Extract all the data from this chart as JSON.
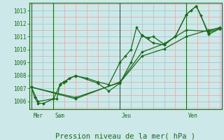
{
  "background_color": "#cde8e8",
  "grid_major_color": "#aacccc",
  "grid_minor_color": "#ddaaaa",
  "line_color": "#1a6b1a",
  "title": "Pression niveau de la mer( hPa )",
  "ylim": [
    1005.4,
    1013.6
  ],
  "yticks": [
    1006,
    1007,
    1008,
    1009,
    1010,
    1011,
    1012,
    1013
  ],
  "day_positions": [
    0.0,
    1.0,
    4.0,
    7.0
  ],
  "day_labels": [
    "Mer",
    "Sam",
    "Jeu",
    "Ven"
  ],
  "xlim": [
    -0.1,
    8.6
  ],
  "series": [
    [
      0.0,
      1007.1,
      0.15,
      1006.3,
      0.3,
      1005.85,
      0.55,
      1005.85,
      1.0,
      1006.2,
      1.15,
      1006.2,
      1.3,
      1007.35,
      1.45,
      1007.45,
      1.55,
      1007.55,
      1.7,
      1007.8,
      2.0,
      1007.95,
      2.5,
      1007.8,
      3.0,
      1007.5,
      3.5,
      1007.3,
      4.0,
      1009.0,
      4.25,
      1009.5,
      4.5,
      1010.0,
      4.75,
      1011.7,
      5.0,
      1011.05,
      5.3,
      1010.9,
      5.5,
      1011.0,
      6.0,
      1010.4,
      6.5,
      1011.0,
      7.0,
      1012.7,
      7.2,
      1013.0,
      7.45,
      1013.35,
      7.65,
      1012.65,
      8.0,
      1011.15,
      8.5,
      1011.6
    ],
    [
      0.0,
      1007.1,
      0.3,
      1006.0,
      1.0,
      1006.2,
      1.3,
      1007.3,
      1.45,
      1007.5,
      2.0,
      1008.0,
      3.0,
      1007.4,
      3.5,
      1006.8,
      4.0,
      1007.4,
      4.5,
      1009.0,
      5.0,
      1011.1,
      5.5,
      1010.5,
      6.0,
      1010.35,
      6.5,
      1011.0,
      7.0,
      1012.7,
      7.45,
      1013.35,
      8.0,
      1011.3,
      8.5,
      1011.6
    ],
    [
      0.0,
      1007.1,
      2.0,
      1006.3,
      4.0,
      1007.45,
      5.0,
      1009.5,
      6.0,
      1010.05,
      7.0,
      1011.0,
      8.0,
      1011.5,
      8.5,
      1011.65
    ],
    [
      0.0,
      1007.1,
      2.0,
      1006.2,
      4.0,
      1007.5,
      5.0,
      1009.8,
      6.0,
      1010.45,
      7.0,
      1011.5,
      8.0,
      1011.4,
      8.5,
      1011.7
    ]
  ]
}
